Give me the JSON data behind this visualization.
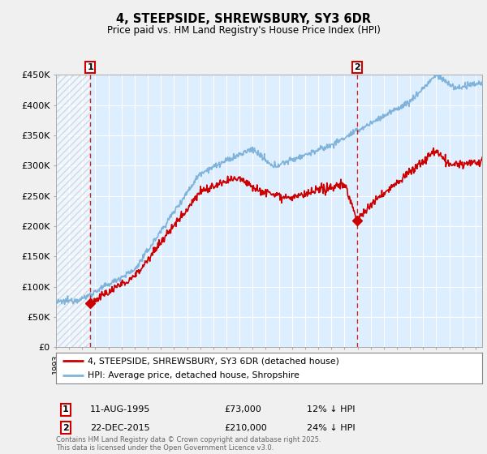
{
  "title": "4, STEEPSIDE, SHREWSBURY, SY3 6DR",
  "subtitle": "Price paid vs. HM Land Registry's House Price Index (HPI)",
  "ylim": [
    0,
    450000
  ],
  "yticks": [
    0,
    50000,
    100000,
    150000,
    200000,
    250000,
    300000,
    350000,
    400000,
    450000
  ],
  "ytick_labels": [
    "£0",
    "£50K",
    "£100K",
    "£150K",
    "£200K",
    "£250K",
    "£300K",
    "£350K",
    "£400K",
    "£450K"
  ],
  "bg_color": "#f0f0f0",
  "plot_bg_color": "#ddeeff",
  "hpi_color": "#7fb3d9",
  "price_color": "#cc0000",
  "grid_color": "#ffffff",
  "marker1_date_str": "11-AUG-1995",
  "marker1_price": 73000,
  "marker1_hpi_note": "12% ↓ HPI",
  "marker1_year": 1995.61,
  "marker2_date_str": "22-DEC-2015",
  "marker2_price": 210000,
  "marker2_hpi_note": "24% ↓ HPI",
  "marker2_year": 2015.97,
  "legend_label_price": "4, STEEPSIDE, SHREWSBURY, SY3 6DR (detached house)",
  "legend_label_hpi": "HPI: Average price, detached house, Shropshire",
  "footer": "Contains HM Land Registry data © Crown copyright and database right 2025.\nThis data is licensed under the Open Government Licence v3.0.",
  "xmin": 1993,
  "xmax": 2025.5
}
